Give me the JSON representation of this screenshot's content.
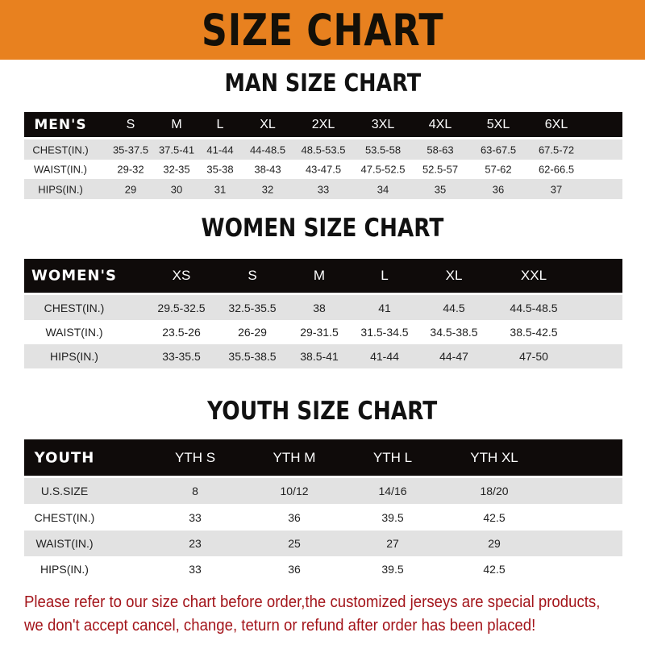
{
  "banner": {
    "title": "SIZE CHART",
    "color": "#e8811f"
  },
  "men": {
    "title": "MAN SIZE CHART",
    "header": [
      "MEN'S",
      "S",
      "M",
      "L",
      "XL",
      "2XL",
      "3XL",
      "4XL",
      "5XL",
      "6XL"
    ],
    "rows": [
      [
        "CHEST(IN.)",
        "35-37.5",
        "37.5-41",
        "41-44",
        "44-48.5",
        "48.5-53.5",
        "53.5-58",
        "58-63",
        "63-67.5",
        "67.5-72"
      ],
      [
        "WAIST(IN.)",
        "29-32",
        "32-35",
        "35-38",
        "38-43",
        "43-47.5",
        "47.5-52.5",
        "52.5-57",
        "57-62",
        "62-66.5"
      ],
      [
        "HIPS(IN.)",
        "29",
        "30",
        "31",
        "32",
        "33",
        "34",
        "35",
        "36",
        "37"
      ]
    ]
  },
  "women": {
    "title": "WOMEN SIZE CHART",
    "header": [
      "WOMEN'S",
      "XS",
      "S",
      "M",
      "L",
      "XL",
      "XXL"
    ],
    "rows": [
      [
        "CHEST(IN.)",
        "29.5-32.5",
        "32.5-35.5",
        "38",
        "41",
        "44.5",
        "44.5-48.5"
      ],
      [
        "WAIST(IN.)",
        "23.5-26",
        "26-29",
        "29-31.5",
        "31.5-34.5",
        "34.5-38.5",
        "38.5-42.5"
      ],
      [
        "HIPS(IN.)",
        "33-35.5",
        "35.5-38.5",
        "38.5-41",
        "41-44",
        "44-47",
        "47-50"
      ]
    ]
  },
  "youth": {
    "title": "YOUTH SIZE CHART",
    "header": [
      "YOUTH",
      "YTH S",
      "YTH M",
      "YTH L",
      "YTH XL"
    ],
    "rows": [
      [
        "U.S.SIZE",
        "8",
        "10/12",
        "14/16",
        "18/20"
      ],
      [
        "CHEST(IN.)",
        "33",
        "36",
        "39.5",
        "42.5"
      ],
      [
        "WAIST(IN.)",
        "23",
        "25",
        "27",
        "29"
      ],
      [
        "HIPS(IN.)",
        "33",
        "36",
        "39.5",
        "42.5"
      ]
    ]
  },
  "note": {
    "line1": "Please refer to our size chart before order,the customized jerseys are special products,",
    "line2": "we don't accept cancel, change, teturn or refund after order has been placed!",
    "color": "#a3141a"
  }
}
